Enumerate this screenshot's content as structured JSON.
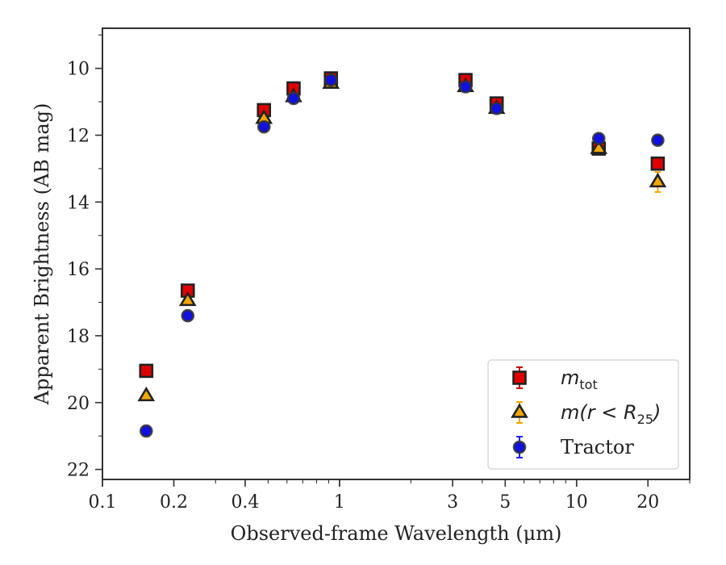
{
  "chart_data": {
    "type": "scatter",
    "title": "",
    "xlabel": "Observed-frame Wavelength (μm)",
    "ylabel": "Apparent Brightness (AB mag)",
    "xscale": "log",
    "xlim": [
      0.1,
      30
    ],
    "ylim": [
      22.3,
      8.8
    ],
    "y_inverted": true,
    "grid": false,
    "legend_position": "lower-right",
    "x_ticks": [
      0.1,
      0.2,
      0.4,
      1,
      3,
      5,
      10,
      20
    ],
    "x_tick_labels": [
      "0.1",
      "0.2",
      "0.4",
      "1",
      "3",
      "5",
      "10",
      "20"
    ],
    "y_ticks": [
      10,
      12,
      14,
      16,
      18,
      20,
      22
    ],
    "y_tick_labels": [
      "10",
      "12",
      "14",
      "16",
      "18",
      "20",
      "22"
    ],
    "series": [
      {
        "name": "m_tot",
        "legend": {
          "main": "m",
          "sub": "tot"
        },
        "marker": "square",
        "color": "#e00000",
        "edge": "#222222",
        "errcolor": "#cc0000",
        "x": [
          0.153,
          0.229,
          0.48,
          0.64,
          0.92,
          3.4,
          4.6,
          12.4,
          22.0
        ],
        "y": [
          19.05,
          16.65,
          11.25,
          10.6,
          10.3,
          10.35,
          11.05,
          12.4,
          12.85
        ],
        "yerr": [
          0.05,
          0.05,
          0.05,
          0.05,
          0.05,
          0.05,
          0.05,
          0.05,
          0.1
        ]
      },
      {
        "name": "m(r < R25)",
        "legend": {
          "main": "m(r < R",
          "sub": "25",
          "tail": ")"
        },
        "marker": "triangle",
        "color": "#f5a800",
        "edge": "#222222",
        "errcolor": "#f5a800",
        "x": [
          0.153,
          0.229,
          0.48,
          0.64,
          0.92,
          3.4,
          4.6,
          12.4,
          22.0
        ],
        "y": [
          19.8,
          16.95,
          11.5,
          10.85,
          10.45,
          10.55,
          11.2,
          12.4,
          13.4
        ],
        "yerr": [
          0.1,
          0.1,
          0.05,
          0.05,
          0.05,
          0.05,
          0.05,
          0.1,
          0.3
        ]
      },
      {
        "name": "Tractor",
        "legend": {
          "main": "Tractor"
        },
        "marker": "circle",
        "color": "#1010e0",
        "edge": "#333333",
        "errcolor": "#2020ff",
        "x": [
          0.153,
          0.229,
          0.48,
          0.64,
          0.92,
          3.4,
          4.6,
          12.4,
          22.0
        ],
        "y": [
          20.85,
          17.4,
          11.75,
          10.9,
          10.35,
          10.55,
          11.2,
          12.1,
          12.15
        ],
        "yerr": [
          0.05,
          0.05,
          0.05,
          0.05,
          0.05,
          0.05,
          0.05,
          0.05,
          0.05
        ]
      }
    ]
  }
}
